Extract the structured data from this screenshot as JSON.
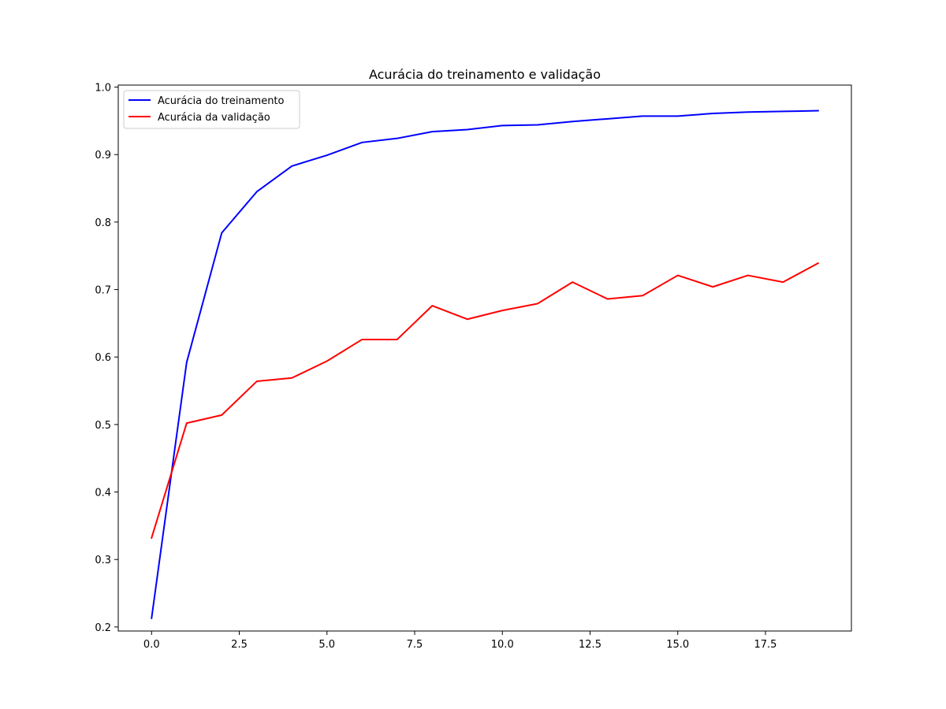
{
  "chart_data": {
    "type": "line",
    "title": "Acurácia do treinamento e validação",
    "xlabel": "",
    "ylabel": "",
    "xlim": [
      -0.95,
      19.95
    ],
    "ylim": [
      0.194,
      1.003
    ],
    "xticks": [
      0.0,
      2.5,
      5.0,
      7.5,
      10.0,
      12.5,
      15.0,
      17.5
    ],
    "xtick_labels": [
      "0.0",
      "2.5",
      "5.0",
      "7.5",
      "10.0",
      "12.5",
      "15.0",
      "17.5"
    ],
    "yticks": [
      0.2,
      0.3,
      0.4,
      0.5,
      0.6,
      0.7,
      0.8,
      0.9,
      1.0
    ],
    "ytick_labels": [
      "0.2",
      "0.3",
      "0.4",
      "0.5",
      "0.6",
      "0.7",
      "0.8",
      "0.9",
      "1.0"
    ],
    "grid": false,
    "legend_position": "top-left",
    "x": [
      0,
      1,
      2,
      3,
      4,
      5,
      6,
      7,
      8,
      9,
      10,
      11,
      12,
      13,
      14,
      15,
      16,
      17,
      18,
      19
    ],
    "series": [
      {
        "name": "Acurácia do treinamento",
        "color": "#0000ff",
        "values": [
          0.213,
          0.592,
          0.784,
          0.845,
          0.883,
          0.899,
          0.918,
          0.924,
          0.934,
          0.937,
          0.943,
          0.944,
          0.949,
          0.953,
          0.957,
          0.957,
          0.961,
          0.963,
          0.964,
          0.965
        ]
      },
      {
        "name": "Acurácia da validação",
        "color": "#ff0000",
        "values": [
          0.332,
          0.502,
          0.514,
          0.564,
          0.569,
          0.594,
          0.626,
          0.626,
          0.676,
          0.656,
          0.669,
          0.679,
          0.711,
          0.686,
          0.691,
          0.721,
          0.704,
          0.721,
          0.711,
          0.739
        ]
      }
    ]
  }
}
